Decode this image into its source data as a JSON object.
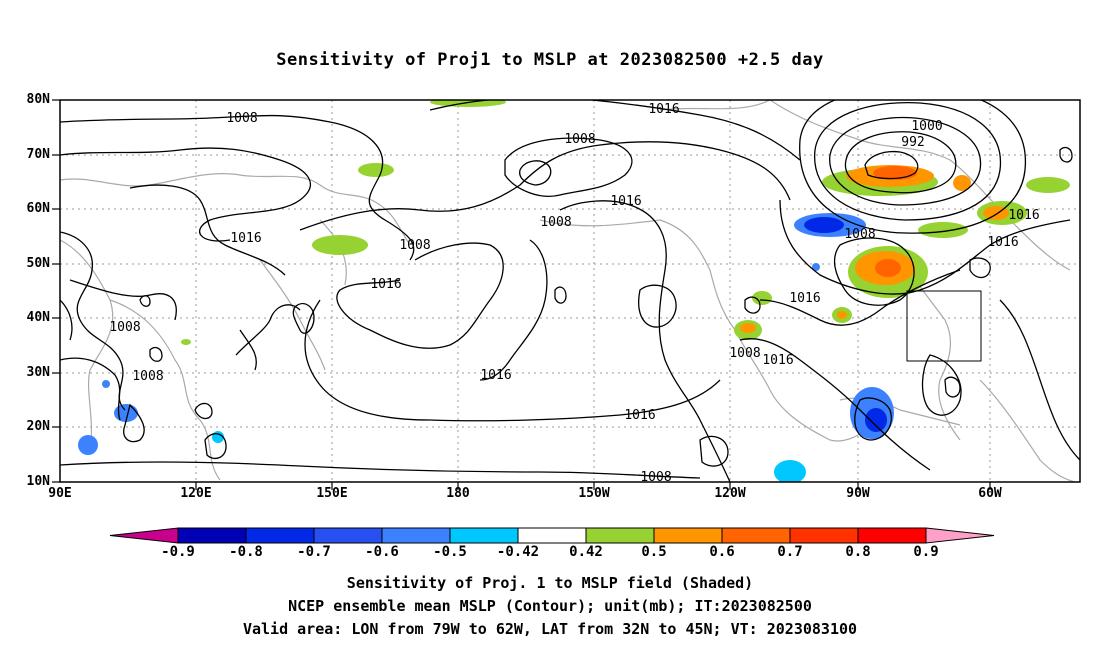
{
  "title": "Sensitivity of Proj1 to MSLP at 2023082500 +2.5 day",
  "lat_labels": [
    "80N",
    "70N",
    "60N",
    "50N",
    "40N",
    "30N",
    "20N",
    "10N"
  ],
  "lon_labels": [
    "90E",
    "120E",
    "150E",
    "180",
    "150W",
    "120W",
    "90W",
    "60W"
  ],
  "contour_labels": [
    "1008",
    "1008",
    "1016",
    "1008",
    "1008",
    "1016",
    "1016",
    "1008",
    "1016",
    "1016",
    "1016",
    "1000",
    "992",
    "1008",
    "1016",
    "1016",
    "1016",
    "1008",
    "1016"
  ],
  "colorbar": {
    "labels": [
      "-0.9",
      "-0.8",
      "-0.7",
      "-0.6",
      "-0.5",
      "-0.42",
      "0.42",
      "0.5",
      "0.6",
      "0.7",
      "0.8",
      "0.9"
    ],
    "colors": [
      "#c8008c",
      "#0000b4",
      "#0028e6",
      "#2850f0",
      "#3c82ff",
      "#00c8ff",
      "#ffffff",
      "#96d232",
      "#ff9600",
      "#ff6400",
      "#ff3200",
      "#ff0000",
      "#ffa0c8"
    ]
  },
  "captions": [
    "Sensitivity of Proj. 1 to MSLP field (Shaded)",
    "NCEP ensemble mean MSLP (Contour); unit(mb); IT:2023082500",
    "Valid area: LON from 79W to 62W, LAT from 32N to 45N; VT: 2023083100"
  ]
}
